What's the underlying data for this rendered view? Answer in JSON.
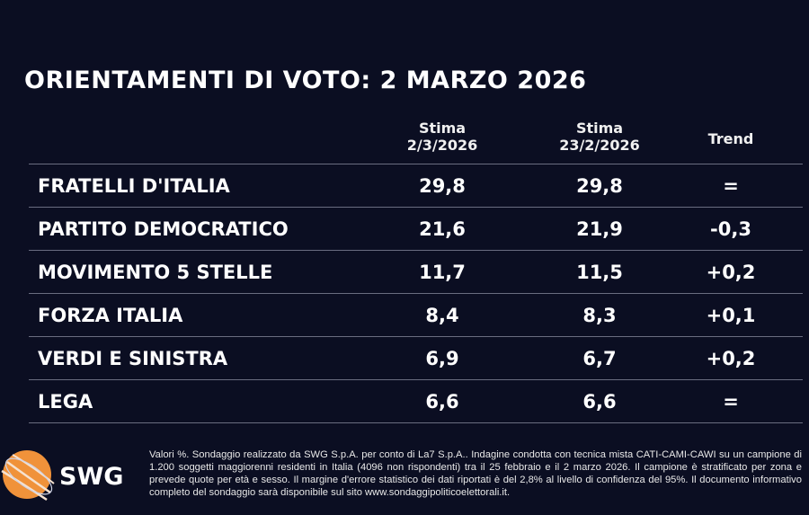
{
  "title": "ORIENTAMENTI DI VOTO: 2 MARZO 2026",
  "headers": {
    "col1_line1": "Stima",
    "col1_line2": "2/3/2026",
    "col2_line1": "Stima",
    "col2_line2": "23/2/2026",
    "col3": "Trend"
  },
  "rows": [
    {
      "party": "FRATELLI D'ITALIA",
      "current": "29,8",
      "previous": "29,8",
      "trend": "="
    },
    {
      "party": "PARTITO DEMOCRATICO",
      "current": "21,6",
      "previous": "21,9",
      "trend": "-0,3"
    },
    {
      "party": "MOVIMENTO 5 STELLE",
      "current": "11,7",
      "previous": "11,5",
      "trend": "+0,2"
    },
    {
      "party": "FORZA ITALIA",
      "current": "8,4",
      "previous": "8,3",
      "trend": "+0,1"
    },
    {
      "party": "VERDI E SINISTRA",
      "current": "6,9",
      "previous": "6,7",
      "trend": "+0,2"
    },
    {
      "party": "LEGA",
      "current": "6,6",
      "previous": "6,6",
      "trend": "="
    }
  ],
  "logo": {
    "text": "SWG",
    "icon": "orange-globe-icon",
    "color": "#f0923a"
  },
  "footnote": "Valori %. Sondaggio realizzato da SWG S.p.A. per conto di La7 S.p.A.. Indagine condotta con tecnica mista CATI-CAMI-CAWI su un campione di 1.200 soggetti maggiorenni residenti in Italia (4096 non rispondenti) tra il 25 febbraio e il 2 marzo 2026. Il campione è stratificato per zona e prevede quote per età e sesso. Il margine d'errore statistico dei dati riportati è del 2,8% al livello di confidenza del 95%. Il documento informativo completo del sondaggio sarà disponibile sul sito www.sondaggipoliticoelettorali.it."
}
